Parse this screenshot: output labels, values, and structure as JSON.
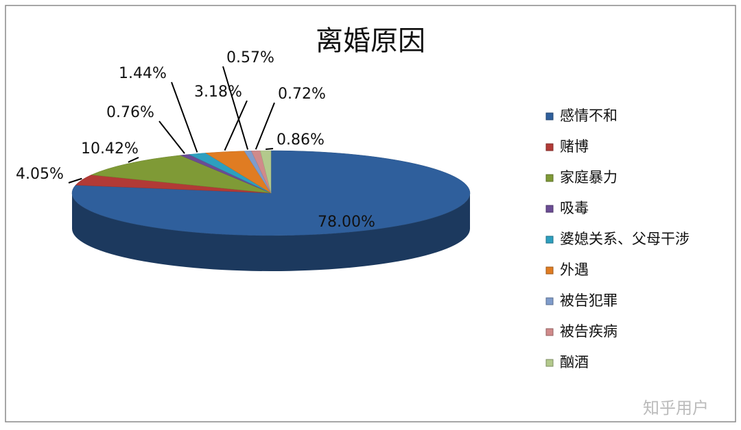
{
  "chart_data": {
    "type": "pie3d",
    "title": "离婚原因",
    "categories": [
      "感情不和",
      "赌博",
      "家庭暴力",
      "吸毒",
      "婆媳关系、父母干涉",
      "外遇",
      "被告犯罪",
      "被告疾病",
      "酗酒"
    ],
    "values": [
      78.0,
      4.05,
      10.42,
      0.76,
      1.44,
      3.18,
      0.57,
      0.72,
      0.86
    ],
    "value_labels": [
      "78.00%",
      "4.05%",
      "10.42%",
      "0.76%",
      "1.44%",
      "3.18%",
      "0.57%",
      "0.72%",
      "0.86%"
    ],
    "colors": [
      "#2f5f9c",
      "#b23a36",
      "#7f9a36",
      "#6b4c94",
      "#2d9fbf",
      "#e07c22",
      "#7f9ccb",
      "#d08a8a",
      "#b3c98c"
    ],
    "legend": "right",
    "watermark": "知乎用户"
  }
}
